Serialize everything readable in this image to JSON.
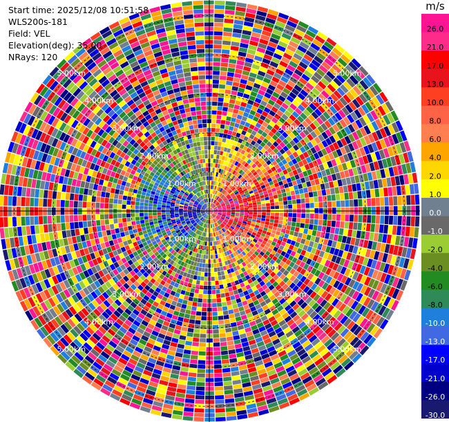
{
  "header": {
    "start_time": "Start time: 2025/12/08 10:51:58",
    "instrument": "WLS200s-181",
    "field": "Field: VEL",
    "elevation": "Elevation(deg): 35.00",
    "nrays": "NRays: 120"
  },
  "chart_data": {
    "type": "heatmap",
    "projection": "polar-ppi",
    "field": "VEL",
    "unit": "m/s",
    "nrays": 120,
    "elevation_deg": 35.0,
    "range_rings_km": [
      1,
      2,
      3,
      4,
      5
    ],
    "ring_labels": [
      "1.00km",
      "2.00km",
      "3.00km",
      "4.00km",
      "5.00km"
    ],
    "max_range_km": 5.4,
    "colorbar": {
      "unit": "m/s",
      "ticks": [
        "26.0",
        "21.0",
        "17.0",
        "13.0",
        "10.0",
        "8.0",
        "6.0",
        "4.0",
        "2.0",
        "1.0",
        "0.0",
        "-1.0",
        "-2.0",
        "-4.0",
        "-6.0",
        "-8.0",
        "-10.0",
        "-13.0",
        "-17.0",
        "-21.0",
        "-26.0",
        "-30.0"
      ],
      "colors": [
        "#ff1493",
        "#ff2b8a",
        "#ff0000",
        "#e8131b",
        "#ff3f22",
        "#ff6347",
        "#ff7f50",
        "#ffa500",
        "#ffd700",
        "#ffff00",
        "#708090",
        "#696969",
        "#9acd32",
        "#6b8e23",
        "#228b22",
        "#2e8b57",
        "#1e7fdc",
        "#4169e1",
        "#0000ff",
        "#0000cd",
        "#000080",
        "#191970"
      ]
    }
  }
}
